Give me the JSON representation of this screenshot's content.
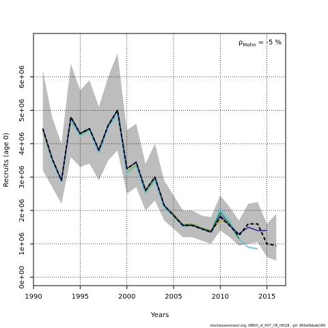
{
  "chart_data": {
    "type": "line",
    "title": "",
    "xlabel": "Years",
    "ylabel": "Recruits (age 0)",
    "xlim": [
      1990,
      2017
    ],
    "ylim": [
      -250000,
      7300000
    ],
    "xticks": [
      1990,
      1995,
      2000,
      2005,
      2010,
      2015
    ],
    "xtick_labels": [
      "1990",
      "1995",
      "2000",
      "2005",
      "2010",
      "2015"
    ],
    "yticks": [
      0,
      1000000,
      2000000,
      3000000,
      4000000,
      5000000,
      6000000
    ],
    "ytick_labels": [
      "0e+00",
      "1e+06",
      "2e+06",
      "3e+06",
      "4e+06",
      "5e+06",
      "6e+06"
    ],
    "grid": true,
    "annotation": {
      "prefix": "ρ",
      "subscript": "Mohn",
      "value": " = -5 %"
    },
    "footer": "stockassessment.org, WBSS_sf_007_CB_r9528 , git: 660a0bbab189",
    "band": {
      "x": [
        1991,
        1992,
        1993,
        1994,
        1995,
        1996,
        1997,
        1998,
        1999,
        2000,
        2001,
        2002,
        2003,
        2004,
        2005,
        2006,
        2007,
        2008,
        2009,
        2010,
        2011,
        2012,
        2013,
        2014,
        2015,
        2016
      ],
      "lower": [
        3200000,
        2700000,
        2200000,
        3600000,
        3300000,
        3400000,
        2900000,
        3500000,
        3800000,
        2500000,
        2700000,
        2000000,
        2300000,
        1700000,
        1450000,
        1200000,
        1200000,
        1100000,
        1000000,
        1400000,
        1200000,
        950000,
        1000000,
        1050000,
        600000,
        500000
      ],
      "upper": [
        6200000,
        4800000,
        4000000,
        6400000,
        5600000,
        5900000,
        5100000,
        6000000,
        6700000,
        4400000,
        4600000,
        3400000,
        4000000,
        2900000,
        2450000,
        2000000,
        2000000,
        1850000,
        1800000,
        2450000,
        2100000,
        1700000,
        2200000,
        2250000,
        1600000,
        1900000
      ]
    },
    "series": [
      {
        "color": "#000000",
        "dashed": true,
        "width": 2,
        "x": [
          1991,
          1992,
          1993,
          1994,
          1995,
          1996,
          1997,
          1998,
          1999,
          2000,
          2001,
          2002,
          2003,
          2004,
          2005,
          2006,
          2007,
          2008,
          2009,
          2010,
          2011,
          2012,
          2013,
          2014,
          2015,
          2016
        ],
        "y": [
          4450000,
          3550000,
          2900000,
          4800000,
          4300000,
          4450000,
          3800000,
          4550000,
          5000000,
          3250000,
          3450000,
          2600000,
          3000000,
          2150000,
          1850000,
          1550000,
          1550000,
          1450000,
          1350000,
          1800000,
          1550000,
          1250000,
          1600000,
          1600000,
          1000000,
          950000
        ]
      },
      {
        "color": "#2b2b9a",
        "dashed": false,
        "width": 1.6,
        "x": [
          1991,
          1992,
          1993,
          1994,
          1995,
          1996,
          1997,
          1998,
          1999,
          2000,
          2001,
          2002,
          2003,
          2004,
          2005,
          2006,
          2007,
          2008,
          2009,
          2010,
          2011,
          2012,
          2013,
          2014,
          2015
        ],
        "y": [
          4450000,
          3550000,
          2900000,
          4780000,
          4300000,
          4450000,
          3800000,
          4550000,
          5000000,
          3250000,
          3450000,
          2600000,
          3000000,
          2150000,
          1850000,
          1550000,
          1550000,
          1450000,
          1350000,
          1850000,
          1550000,
          1300000,
          1500000,
          1400000,
          1400000
        ]
      },
      {
        "color": "#1e8b4c",
        "dashed": false,
        "width": 1.6,
        "x": [
          1991,
          1992,
          1993,
          1994,
          1995,
          1996,
          1997,
          1998,
          1999,
          2000,
          2001,
          2002,
          2003,
          2004,
          2005,
          2006,
          2007,
          2008,
          2009,
          2010,
          2011,
          2012
        ],
        "y": [
          4450000,
          3560000,
          2900000,
          4800000,
          4320000,
          4460000,
          3820000,
          4560000,
          5010000,
          3250000,
          3450000,
          2600000,
          3000000,
          2160000,
          1870000,
          1570000,
          1580000,
          1470000,
          1380000,
          1950000,
          1600000,
          1150000
        ]
      },
      {
        "color": "#5bc4d6",
        "dashed": false,
        "width": 1.6,
        "x": [
          1991,
          1992,
          1993,
          1994,
          1995,
          1996,
          1997,
          1998,
          1999,
          2000,
          2001,
          2002,
          2003,
          2004,
          2005,
          2006,
          2007,
          2008,
          2009,
          2010,
          2011,
          2012,
          2013,
          2014
        ],
        "y": [
          4400000,
          3500000,
          2850000,
          4700000,
          4220000,
          4400000,
          3720000,
          4480000,
          4900000,
          3100000,
          3350000,
          2500000,
          2900000,
          2080000,
          1830000,
          1520000,
          1570000,
          1440000,
          1350000,
          2050000,
          1700000,
          1150000,
          900000,
          850000
        ]
      },
      {
        "color": "#b4a528",
        "dashed": false,
        "width": 1.6,
        "x": [
          1991,
          1992,
          1993,
          1994,
          1995,
          1996,
          1997,
          1998,
          1999,
          2000,
          2001,
          2002,
          2003,
          2004,
          2005,
          2006,
          2007,
          2008,
          2009,
          2010,
          2011
        ],
        "y": [
          4350000,
          3500000,
          2900000,
          4650000,
          4280000,
          4420000,
          3760000,
          4500000,
          4900000,
          3150000,
          3380000,
          2550000,
          2950000,
          2120000,
          1900000,
          1580000,
          1600000,
          1480000,
          1400000,
          1700000,
          1650000
        ]
      }
    ]
  }
}
